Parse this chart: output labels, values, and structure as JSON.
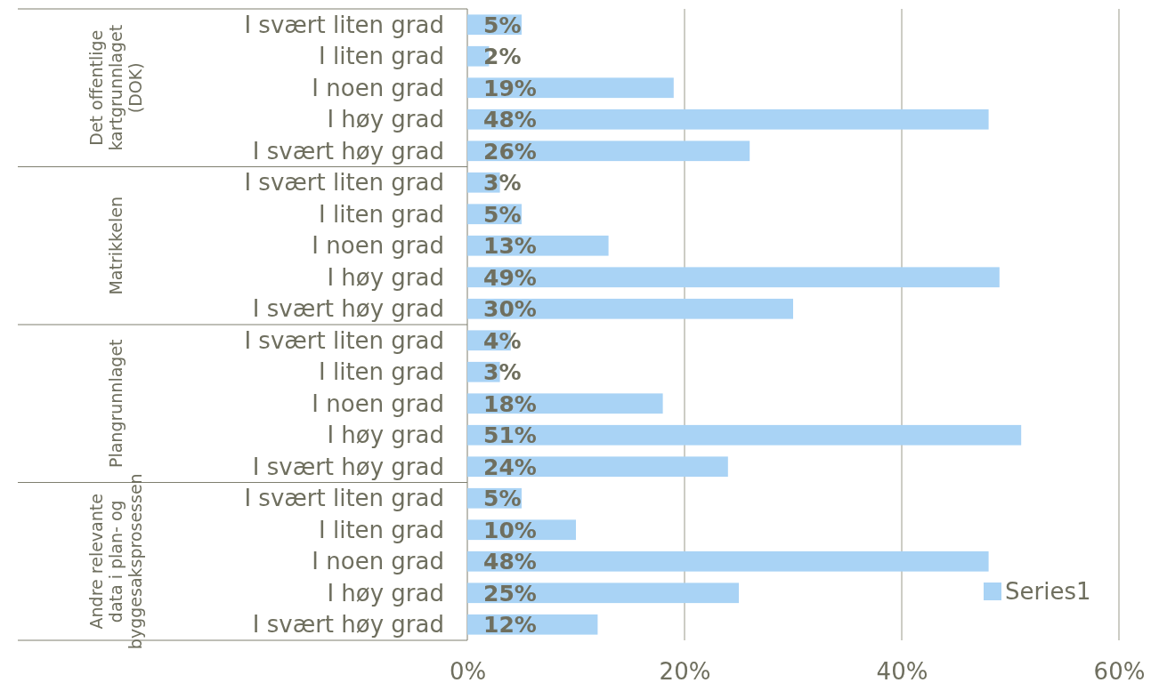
{
  "chart_data": {
    "type": "bar",
    "orientation": "horizontal",
    "categories": [
      "I svært liten grad",
      "I liten grad",
      "I noen grad",
      "I høy grad",
      "I svært høy grad",
      "I svært liten grad",
      "I liten grad",
      "I noen grad",
      "I høy grad",
      "I svært høy grad",
      "I svært liten grad",
      "I liten grad",
      "I noen grad",
      "I høy grad",
      "I svært høy grad",
      "I svært liten grad",
      "I liten grad",
      "I noen grad",
      "I høy grad",
      "I svært høy grad"
    ],
    "annotations": [
      "Det offentlige kartgrunnlaget (DOK)",
      "Matrikkelen",
      "Plangrunnlaget",
      "Andre relevante data i plan- og byggesaksprosessen"
    ],
    "series": [
      {
        "name": "Series1",
        "color": "#a9d3f5",
        "values": [
          5,
          2,
          19,
          48,
          26,
          3,
          5,
          13,
          49,
          30,
          4,
          3,
          18,
          51,
          24,
          5,
          10,
          48,
          25,
          12
        ],
        "value_labels": [
          "5%",
          "2%",
          "19%",
          "48%",
          "26%",
          "3%",
          "5%",
          "13%",
          "49%",
          "30%",
          "4%",
          "3%",
          "18%",
          "51%",
          "24%",
          "5%",
          "10%",
          "48%",
          "25%",
          "12%"
        ]
      }
    ],
    "xlim": [
      0,
      60
    ],
    "xticks": [
      {
        "value": 0,
        "label": "0%"
      },
      {
        "value": 20,
        "label": "20%"
      },
      {
        "value": 40,
        "label": "40%"
      },
      {
        "value": 60,
        "label": "60%"
      }
    ],
    "grid": "x",
    "legend": "bottom right"
  }
}
